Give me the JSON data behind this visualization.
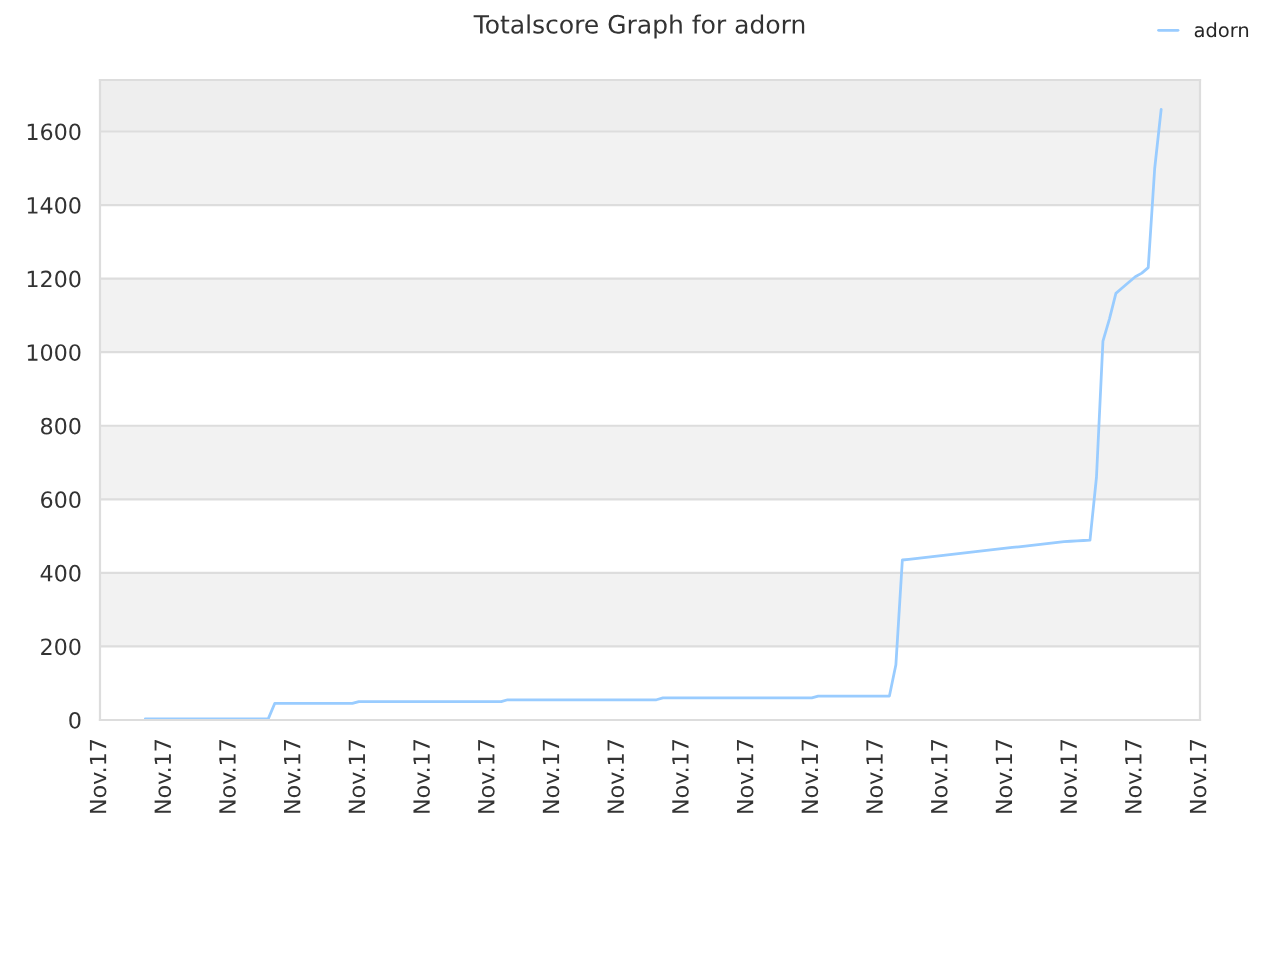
{
  "chart_data": {
    "type": "line",
    "title": "Totalscore Graph for adorn",
    "categories": [
      "Nov.17",
      null,
      null,
      null,
      null,
      null,
      null,
      null,
      null,
      null,
      "Nov.17",
      null,
      null,
      null,
      null,
      null,
      null,
      null,
      null,
      null,
      "Nov.17",
      null,
      null,
      null,
      null,
      null,
      null,
      null,
      null,
      null,
      "Nov.17",
      null,
      null,
      null,
      null,
      null,
      null,
      null,
      null,
      null,
      "Nov.17",
      null,
      null,
      null,
      null,
      null,
      null,
      null,
      null,
      null,
      "Nov.17",
      null,
      null,
      null,
      null,
      null,
      null,
      null,
      null,
      null,
      "Nov.17",
      null,
      null,
      null,
      null,
      null,
      null,
      null,
      null,
      null,
      "Nov.17",
      null,
      null,
      null,
      null,
      null,
      null,
      null,
      null,
      null,
      "Nov.17",
      null,
      null,
      null,
      null,
      null,
      null,
      null,
      null,
      null,
      "Nov.17",
      null,
      null,
      null,
      null,
      null,
      null,
      null,
      null,
      null,
      "Nov.17",
      null,
      null,
      null,
      null,
      null,
      null,
      null,
      null,
      null,
      "Nov.17",
      null,
      null,
      null,
      null,
      null,
      null,
      null,
      null,
      null,
      "Nov.17",
      null,
      null,
      null,
      null,
      null,
      null,
      null,
      null,
      null,
      "Nov.17",
      null,
      null,
      null,
      null,
      null,
      null,
      null,
      null,
      null,
      "Nov.17",
      null,
      null,
      null,
      null,
      null,
      null,
      null,
      null,
      null,
      "Nov.17",
      null,
      null,
      null,
      null,
      null,
      null,
      null,
      null,
      null,
      "Nov.17",
      null,
      null,
      null,
      null,
      null,
      null,
      null,
      null,
      null,
      "Nov.17"
    ],
    "ylim": [
      0,
      1740
    ],
    "yticks": [
      0,
      200,
      400,
      600,
      800,
      1000,
      1200,
      1400,
      1600
    ],
    "grid": "y",
    "legend": "top right",
    "marker": "none",
    "line_style": "solid",
    "series": [
      {
        "name": "adorn",
        "color": "#99ccff",
        "values": [
          null,
          null,
          null,
          null,
          null,
          null,
          null,
          3,
          3,
          3,
          3,
          3,
          3,
          3,
          3,
          3,
          3,
          3,
          3,
          3,
          3,
          3,
          3,
          3,
          3,
          3,
          3,
          45,
          45,
          45,
          45,
          45,
          45,
          45,
          45,
          45,
          45,
          45,
          45,
          45,
          50,
          50,
          50,
          50,
          50,
          50,
          50,
          50,
          50,
          50,
          50,
          50,
          50,
          50,
          50,
          50,
          50,
          50,
          50,
          50,
          50,
          50,
          50,
          55,
          55,
          55,
          55,
          55,
          55,
          55,
          55,
          55,
          55,
          55,
          55,
          55,
          55,
          55,
          55,
          55,
          55,
          55,
          55,
          55,
          55,
          55,
          55,
          60,
          60,
          60,
          60,
          60,
          60,
          60,
          60,
          60,
          60,
          60,
          60,
          60,
          60,
          60,
          60,
          60,
          60,
          60,
          60,
          60,
          60,
          60,
          60,
          65,
          65,
          65,
          65,
          65,
          65,
          65,
          65,
          65,
          65,
          65,
          65,
          150,
          435,
          437,
          439,
          441,
          443,
          445,
          447,
          449,
          451,
          453,
          455,
          457,
          459,
          461,
          463,
          465,
          467,
          469,
          471,
          473,
          475,
          477,
          479,
          481,
          483,
          485,
          486,
          487,
          488,
          489,
          660,
          1030,
          1090,
          1160,
          1175,
          1190,
          1205,
          1215,
          1230,
          1500,
          1660,
          null,
          null,
          null,
          null,
          null,
          null
        ]
      }
    ]
  }
}
